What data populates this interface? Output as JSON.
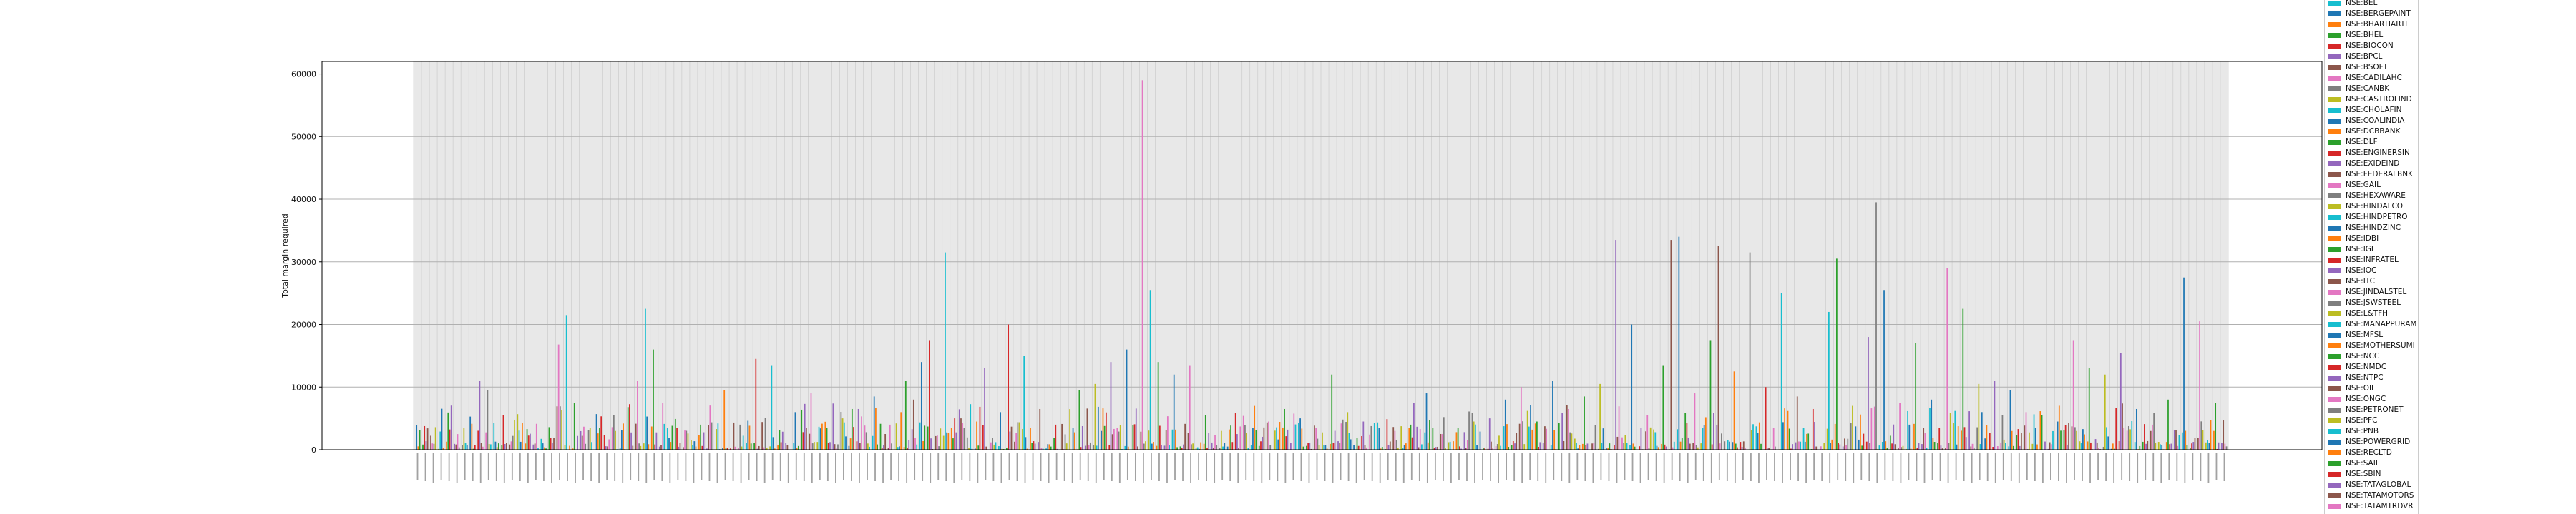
{
  "chart_data": {
    "type": "bar",
    "title": "",
    "xlabel": "",
    "ylabel": "Total margin required",
    "ylim": [
      0,
      62000
    ],
    "yticks": [
      "0",
      "10000",
      "20000",
      "30000",
      "40000",
      "50000",
      "60000"
    ],
    "grid": true,
    "legend_position": "right",
    "category_count": 230,
    "series": [
      {
        "name": "NSE:BEL",
        "color": "#17becf"
      },
      {
        "name": "NSE:BERGEPAINT",
        "color": "#1f77b4"
      },
      {
        "name": "NSE:BHARTIARTL",
        "color": "#ff7f0e"
      },
      {
        "name": "NSE:BHEL",
        "color": "#2ca02c"
      },
      {
        "name": "NSE:BIOCON",
        "color": "#d62728"
      },
      {
        "name": "NSE:BPCL",
        "color": "#9467bd"
      },
      {
        "name": "NSE:BSOFT",
        "color": "#8c564b"
      },
      {
        "name": "NSE:CADILAHC",
        "color": "#e377c2"
      },
      {
        "name": "NSE:CANBK",
        "color": "#7f7f7f"
      },
      {
        "name": "NSE:CASTROLIND",
        "color": "#bcbd22"
      },
      {
        "name": "NSE:CHOLAFIN",
        "color": "#17becf"
      },
      {
        "name": "NSE:COALINDIA",
        "color": "#1f77b4"
      },
      {
        "name": "NSE:DCBBANK",
        "color": "#ff7f0e"
      },
      {
        "name": "NSE:DLF",
        "color": "#2ca02c"
      },
      {
        "name": "NSE:ENGINERSIN",
        "color": "#d62728"
      },
      {
        "name": "NSE:EXIDEIND",
        "color": "#9467bd"
      },
      {
        "name": "NSE:FEDERALBNK",
        "color": "#8c564b"
      },
      {
        "name": "NSE:GAIL",
        "color": "#e377c2"
      },
      {
        "name": "NSE:HEXAWARE",
        "color": "#7f7f7f"
      },
      {
        "name": "NSE:HINDALCO",
        "color": "#bcbd22"
      },
      {
        "name": "NSE:HINDPETRO",
        "color": "#17becf"
      },
      {
        "name": "NSE:HINDZINC",
        "color": "#1f77b4"
      },
      {
        "name": "NSE:IDBI",
        "color": "#ff7f0e"
      },
      {
        "name": "NSE:IGL",
        "color": "#2ca02c"
      },
      {
        "name": "NSE:INFRATEL",
        "color": "#d62728"
      },
      {
        "name": "NSE:IOC",
        "color": "#9467bd"
      },
      {
        "name": "NSE:ITC",
        "color": "#8c564b"
      },
      {
        "name": "NSE:JINDALSTEL",
        "color": "#e377c2"
      },
      {
        "name": "NSE:JSWSTEEL",
        "color": "#7f7f7f"
      },
      {
        "name": "NSE:L&TFH",
        "color": "#bcbd22"
      },
      {
        "name": "NSE:MANAPPURAM",
        "color": "#17becf"
      },
      {
        "name": "NSE:MFSL",
        "color": "#1f77b4"
      },
      {
        "name": "NSE:MOTHERSUMI",
        "color": "#ff7f0e"
      },
      {
        "name": "NSE:NCC",
        "color": "#2ca02c"
      },
      {
        "name": "NSE:NMDC",
        "color": "#d62728"
      },
      {
        "name": "NSE:NTPC",
        "color": "#9467bd"
      },
      {
        "name": "NSE:OIL",
        "color": "#8c564b"
      },
      {
        "name": "NSE:ONGC",
        "color": "#e377c2"
      },
      {
        "name": "NSE:PETRONET",
        "color": "#7f7f7f"
      },
      {
        "name": "NSE:PFC",
        "color": "#bcbd22"
      },
      {
        "name": "NSE:PNB",
        "color": "#17becf"
      },
      {
        "name": "NSE:POWERGRID",
        "color": "#1f77b4"
      },
      {
        "name": "NSE:RECLTD",
        "color": "#ff7f0e"
      },
      {
        "name": "NSE:SAIL",
        "color": "#2ca02c"
      },
      {
        "name": "NSE:SBIN",
        "color": "#d62728"
      },
      {
        "name": "NSE:TATAGLOBAL",
        "color": "#9467bd"
      },
      {
        "name": "NSE:TATAMOTORS",
        "color": "#8c564b"
      },
      {
        "name": "NSE:TATAMTRDVR",
        "color": "#e377c2"
      }
    ],
    "peaks": [
      {
        "index": 2,
        "value": 1000
      },
      {
        "index": 6,
        "value": 3500
      },
      {
        "index": 8,
        "value": 11000
      },
      {
        "index": 9,
        "value": 9500
      },
      {
        "index": 11,
        "value": 5500
      },
      {
        "index": 14,
        "value": 3300
      },
      {
        "index": 18,
        "value": 16800
      },
      {
        "index": 19,
        "value": 21500
      },
      {
        "index": 20,
        "value": 7500
      },
      {
        "index": 22,
        "value": 3500
      },
      {
        "index": 25,
        "value": 5500
      },
      {
        "index": 28,
        "value": 11000
      },
      {
        "index": 29,
        "value": 22500
      },
      {
        "index": 30,
        "value": 16000
      },
      {
        "index": 33,
        "value": 3500
      },
      {
        "index": 36,
        "value": 4000
      },
      {
        "index": 39,
        "value": 9500
      },
      {
        "index": 41,
        "value": 4000
      },
      {
        "index": 43,
        "value": 14500
      },
      {
        "index": 45,
        "value": 13500
      },
      {
        "index": 48,
        "value": 6000
      },
      {
        "index": 50,
        "value": 9000
      },
      {
        "index": 52,
        "value": 3500
      },
      {
        "index": 54,
        "value": 5000
      },
      {
        "index": 56,
        "value": 6500
      },
      {
        "index": 58,
        "value": 8500
      },
      {
        "index": 60,
        "value": 4000
      },
      {
        "index": 62,
        "value": 11000
      },
      {
        "index": 63,
        "value": 8000
      },
      {
        "index": 64,
        "value": 14000
      },
      {
        "index": 65,
        "value": 17500
      },
      {
        "index": 67,
        "value": 31500
      },
      {
        "index": 69,
        "value": 5000
      },
      {
        "index": 71,
        "value": 4500
      },
      {
        "index": 72,
        "value": 13000
      },
      {
        "index": 74,
        "value": 6000
      },
      {
        "index": 75,
        "value": 20000
      },
      {
        "index": 77,
        "value": 15000
      },
      {
        "index": 79,
        "value": 6500
      },
      {
        "index": 81,
        "value": 4000
      },
      {
        "index": 84,
        "value": 9500
      },
      {
        "index": 86,
        "value": 10500
      },
      {
        "index": 88,
        "value": 14000
      },
      {
        "index": 90,
        "value": 16000
      },
      {
        "index": 92,
        "value": 59000
      },
      {
        "index": 93,
        "value": 25500
      },
      {
        "index": 94,
        "value": 14000
      },
      {
        "index": 96,
        "value": 12000
      },
      {
        "index": 98,
        "value": 13500
      },
      {
        "index": 100,
        "value": 5500
      },
      {
        "index": 102,
        "value": 3000
      },
      {
        "index": 104,
        "value": 2500
      },
      {
        "index": 106,
        "value": 3500
      },
      {
        "index": 108,
        "value": 4500
      },
      {
        "index": 110,
        "value": 6500
      },
      {
        "index": 112,
        "value": 5000
      },
      {
        "index": 114,
        "value": 3500
      },
      {
        "index": 116,
        "value": 12000
      },
      {
        "index": 118,
        "value": 6000
      },
      {
        "index": 120,
        "value": 4500
      },
      {
        "index": 122,
        "value": 3500
      },
      {
        "index": 124,
        "value": 3000
      },
      {
        "index": 126,
        "value": 4000
      },
      {
        "index": 128,
        "value": 9000
      },
      {
        "index": 130,
        "value": 2500
      },
      {
        "index": 132,
        "value": 3500
      },
      {
        "index": 134,
        "value": 4500
      },
      {
        "index": 136,
        "value": 5000
      },
      {
        "index": 138,
        "value": 8000
      },
      {
        "index": 140,
        "value": 10000
      },
      {
        "index": 142,
        "value": 4500
      },
      {
        "index": 144,
        "value": 11000
      },
      {
        "index": 146,
        "value": 6500
      },
      {
        "index": 148,
        "value": 8500
      },
      {
        "index": 150,
        "value": 10500
      },
      {
        "index": 152,
        "value": 33500
      },
      {
        "index": 154,
        "value": 20000
      },
      {
        "index": 156,
        "value": 5500
      },
      {
        "index": 158,
        "value": 13500
      },
      {
        "index": 159,
        "value": 33500
      },
      {
        "index": 160,
        "value": 34000
      },
      {
        "index": 162,
        "value": 9000
      },
      {
        "index": 164,
        "value": 17500
      },
      {
        "index": 165,
        "value": 32500
      },
      {
        "index": 167,
        "value": 12500
      },
      {
        "index": 169,
        "value": 31500
      },
      {
        "index": 171,
        "value": 10000
      },
      {
        "index": 173,
        "value": 25000
      },
      {
        "index": 175,
        "value": 8500
      },
      {
        "index": 177,
        "value": 6500
      },
      {
        "index": 179,
        "value": 22000
      },
      {
        "index": 180,
        "value": 30500
      },
      {
        "index": 182,
        "value": 7000
      },
      {
        "index": 184,
        "value": 18000
      },
      {
        "index": 185,
        "value": 39500
      },
      {
        "index": 186,
        "value": 25500
      },
      {
        "index": 188,
        "value": 7500
      },
      {
        "index": 190,
        "value": 17000
      },
      {
        "index": 192,
        "value": 8000
      },
      {
        "index": 194,
        "value": 29000
      },
      {
        "index": 196,
        "value": 22500
      },
      {
        "index": 198,
        "value": 10500
      },
      {
        "index": 200,
        "value": 11000
      },
      {
        "index": 202,
        "value": 9500
      },
      {
        "index": 204,
        "value": 6000
      },
      {
        "index": 206,
        "value": 5500
      },
      {
        "index": 208,
        "value": 4500
      },
      {
        "index": 210,
        "value": 17500
      },
      {
        "index": 212,
        "value": 13000
      },
      {
        "index": 214,
        "value": 12000
      },
      {
        "index": 216,
        "value": 15500
      },
      {
        "index": 218,
        "value": 6500
      },
      {
        "index": 220,
        "value": 4000
      },
      {
        "index": 222,
        "value": 8000
      },
      {
        "index": 224,
        "value": 27500
      },
      {
        "index": 226,
        "value": 20500
      },
      {
        "index": 228,
        "value": 7500
      }
    ]
  }
}
